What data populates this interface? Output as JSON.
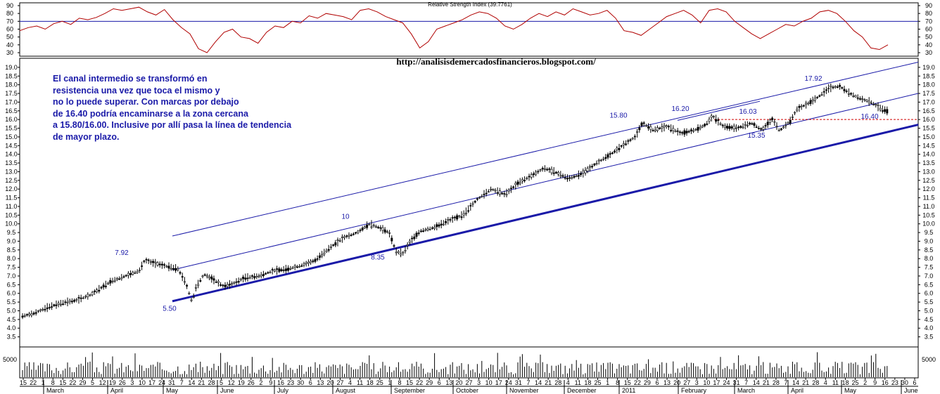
{
  "url_text": "http://analisisdemercadosfinancieros.blogspot.com/",
  "rsi": {
    "title": "Relative Strength Index (39.7761)",
    "ticks": [
      30,
      40,
      50,
      60,
      70,
      80,
      90
    ],
    "overbought": 70,
    "values": [
      58,
      62,
      64,
      60,
      67,
      70,
      66,
      74,
      72,
      75,
      80,
      86,
      84,
      86,
      88,
      82,
      78,
      85,
      72,
      62,
      54,
      35,
      30,
      44,
      56,
      60,
      50,
      48,
      42,
      56,
      64,
      62,
      70,
      68,
      77,
      74,
      80,
      78,
      76,
      72,
      84,
      86,
      82,
      76,
      72,
      68,
      54,
      36,
      44,
      60,
      64,
      68,
      72,
      78,
      82,
      80,
      74,
      64,
      60,
      66,
      74,
      80,
      76,
      82,
      78,
      86,
      82,
      78,
      80,
      84,
      74,
      58,
      56,
      52,
      60,
      68,
      76,
      80,
      84,
      78,
      68,
      84,
      86,
      82,
      70,
      62,
      54,
      48,
      54,
      60,
      66,
      64,
      70,
      74,
      82,
      84,
      80,
      70,
      58,
      50,
      36,
      34,
      40
    ]
  },
  "chart_data": {
    "type": "candlestick",
    "title": "",
    "y_ticks": [
      "3.5",
      "4.0",
      "4.5",
      "5.0",
      "5.5",
      "6.0",
      "6.5",
      "7.0",
      "7.5",
      "8.0",
      "8.5",
      "9.0",
      "9.5",
      "10.0",
      "10.5",
      "11.0",
      "11.5",
      "12.0",
      "12.5",
      "13.0",
      "13.5",
      "14.0",
      "14.5",
      "15.0",
      "15.5",
      "16.0",
      "16.5",
      "17.0",
      "17.5",
      "18.0",
      "18.5",
      "19.0"
    ],
    "ylim": [
      3.0,
      19.4
    ],
    "price_path": [
      [
        0,
        4.65
      ],
      [
        20,
        4.85
      ],
      [
        40,
        5.2
      ],
      [
        60,
        5.45
      ],
      [
        80,
        5.6
      ],
      [
        100,
        5.9
      ],
      [
        115,
        6.3
      ],
      [
        130,
        6.7
      ],
      [
        150,
        7.0
      ],
      [
        170,
        7.3
      ],
      [
        178,
        7.92
      ],
      [
        190,
        7.75
      ],
      [
        205,
        7.6
      ],
      [
        225,
        7.4
      ],
      [
        236,
        6.6
      ],
      [
        245,
        5.5
      ],
      [
        250,
        6.3
      ],
      [
        262,
        7.1
      ],
      [
        275,
        6.8
      ],
      [
        290,
        6.4
      ],
      [
        305,
        6.6
      ],
      [
        320,
        6.9
      ],
      [
        340,
        7.0
      ],
      [
        360,
        7.3
      ],
      [
        380,
        7.4
      ],
      [
        400,
        7.6
      ],
      [
        420,
        7.9
      ],
      [
        440,
        8.6
      ],
      [
        460,
        9.2
      ],
      [
        480,
        9.5
      ],
      [
        497,
        10.0
      ],
      [
        510,
        9.8
      ],
      [
        525,
        9.5
      ],
      [
        535,
        8.4
      ],
      [
        545,
        8.3
      ],
      [
        555,
        9.0
      ],
      [
        570,
        9.6
      ],
      [
        590,
        9.8
      ],
      [
        610,
        10.2
      ],
      [
        630,
        10.5
      ],
      [
        650,
        11.4
      ],
      [
        670,
        12.0
      ],
      [
        690,
        11.7
      ],
      [
        710,
        12.4
      ],
      [
        725,
        12.7
      ],
      [
        745,
        13.2
      ],
      [
        760,
        13.0
      ],
      [
        780,
        12.6
      ],
      [
        800,
        12.9
      ],
      [
        820,
        13.5
      ],
      [
        840,
        14.0
      ],
      [
        860,
        14.6
      ],
      [
        875,
        15.0
      ],
      [
        885,
        15.8
      ],
      [
        900,
        15.4
      ],
      [
        920,
        15.6
      ],
      [
        940,
        15.2
      ],
      [
        960,
        15.4
      ],
      [
        975,
        15.7
      ],
      [
        985,
        16.2
      ],
      [
        1000,
        15.6
      ],
      [
        1020,
        15.5
      ],
      [
        1040,
        15.8
      ],
      [
        1055,
        15.4
      ],
      [
        1070,
        16.03
      ],
      [
        1080,
        15.35
      ],
      [
        1095,
        15.9
      ],
      [
        1105,
        16.6
      ],
      [
        1120,
        16.9
      ],
      [
        1135,
        17.3
      ],
      [
        1150,
        17.8
      ],
      [
        1165,
        17.92
      ],
      [
        1180,
        17.5
      ],
      [
        1195,
        17.2
      ],
      [
        1210,
        17.0
      ],
      [
        1225,
        16.6
      ],
      [
        1240,
        16.4
      ],
      [
        1250,
        16.9
      ],
      [
        1262,
        16.7
      ]
    ],
    "annotations": [
      {
        "text": "7.92",
        "x": 173,
        "y": 8.22
      },
      {
        "text": "5.50",
        "x": 241,
        "y": 5.0
      },
      {
        "text": "10",
        "x": 491,
        "y": 10.3
      },
      {
        "text": "8.35",
        "x": 537,
        "y": 7.95
      },
      {
        "text": "15.80",
        "x": 879,
        "y": 16.1
      },
      {
        "text": "16.20",
        "x": 967,
        "y": 16.5
      },
      {
        "text": "16.03",
        "x": 1063,
        "y": 16.33
      },
      {
        "text": "15.35",
        "x": 1075,
        "y": 14.95
      },
      {
        "text": "17.92",
        "x": 1156,
        "y": 18.22
      },
      {
        "text": "16.40",
        "x": 1236,
        "y": 16.05
      }
    ],
    "comment_lines": [
      "El canal intermedio se transformó en",
      "resistencia una vez que toca el mismo y",
      "no lo puede superar. Con marcas por debajo",
      "de 16.40 podría encaminarse a la zona cercana",
      "a 15.80/16.00. Inclusive por allí pasa la línea de tendencia",
      "de mayor plazo."
    ],
    "support_level": 16.0,
    "volume": {
      "tick": "5000"
    },
    "x_axis": {
      "days": [
        "15",
        "22",
        "1",
        "8",
        "15",
        "22",
        "29",
        "5",
        "12",
        "19",
        "26",
        "3",
        "10",
        "17",
        "24",
        "31",
        "7",
        "14",
        "21",
        "28",
        "5",
        "12",
        "19",
        "26",
        "2",
        "9",
        "16",
        "23",
        "30",
        "6",
        "13",
        "20",
        "27",
        "4",
        "11",
        "18",
        "25",
        "1",
        "8",
        "15",
        "22",
        "29",
        "6",
        "13",
        "20",
        "27",
        "3",
        "10",
        "17",
        "24",
        "31",
        "7",
        "14",
        "21",
        "28",
        "4",
        "11",
        "18",
        "25",
        "1",
        "8",
        "15",
        "22",
        "29",
        "6",
        "13",
        "20",
        "27",
        "3",
        "10",
        "17",
        "24",
        "31",
        "7",
        "14",
        "21",
        "28",
        "7",
        "14",
        "21",
        "28",
        "4",
        "11",
        "18",
        "25",
        "2",
        "9",
        "16",
        "23",
        "30",
        "6"
      ],
      "months": [
        {
          "label": "March",
          "x": 66
        },
        {
          "label": "April",
          "x": 157
        },
        {
          "label": "May",
          "x": 236
        },
        {
          "label": "June",
          "x": 313
        },
        {
          "label": "July",
          "x": 394
        },
        {
          "label": "August",
          "x": 477
        },
        {
          "label": "September",
          "x": 560
        },
        {
          "label": "October",
          "x": 648
        },
        {
          "label": "November",
          "x": 724
        },
        {
          "label": "December",
          "x": 806
        },
        {
          "label": "2011",
          "x": 884
        },
        {
          "label": "February",
          "x": 968
        },
        {
          "label": "March",
          "x": 1048
        },
        {
          "label": "April",
          "x": 1124
        },
        {
          "label": "May",
          "x": 1200
        },
        {
          "label": "June",
          "x": 1285
        }
      ]
    }
  }
}
